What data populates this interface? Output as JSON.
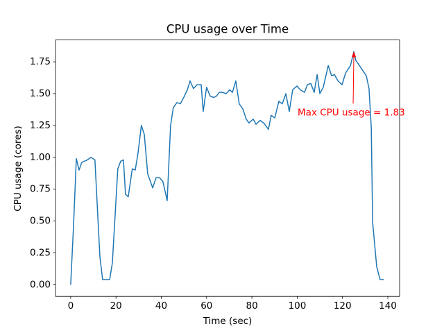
{
  "chart_data": {
    "type": "line",
    "title": "CPU usage over Time",
    "xlabel": "Time (sec)",
    "ylabel": "CPU usage (cores)",
    "x": [
      0,
      1.2,
      2.5,
      3.7,
      4.9,
      6.1,
      7.4,
      8.9,
      10.7,
      12.9,
      14.1,
      15.3,
      17.2,
      18.4,
      20.8,
      22.1,
      23.3,
      24.2,
      25.4,
      27.2,
      28.5,
      29.7,
      31.2,
      32.5,
      34.0,
      36.2,
      37.7,
      39.2,
      40.7,
      42.6,
      44.1,
      45.3,
      46.9,
      48.4,
      49.9,
      51.5,
      52.7,
      54.2,
      55.8,
      57.6,
      58.5,
      60.0,
      61.6,
      63.1,
      64.3,
      65.6,
      67.1,
      68.6,
      70.2,
      71.4,
      72.9,
      74.4,
      76.0,
      77.5,
      78.7,
      80.6,
      81.8,
      83.6,
      85.2,
      87.3,
      88.5,
      90.1,
      91.9,
      93.4,
      95.0,
      96.5,
      98.0,
      99.9,
      101.4,
      103.2,
      104.5,
      106.0,
      107.5,
      108.8,
      110.0,
      111.5,
      113.7,
      115.2,
      116.4,
      118.0,
      119.8,
      121.3,
      123.5,
      125.0,
      125.9,
      127.5,
      129.0,
      130.5,
      131.7,
      132.7,
      133.3,
      135.1,
      136.6,
      138.2
    ],
    "series": [
      {
        "name": "CPU usage",
        "color": "#1f77b4",
        "values": [
          0,
          0.44,
          0.99,
          0.9,
          0.96,
          0.97,
          0.98,
          1.0,
          0.98,
          0.22,
          0.04,
          0.04,
          0.04,
          0.17,
          0.91,
          0.97,
          0.98,
          0.71,
          0.69,
          0.91,
          0.9,
          1.03,
          1.25,
          1.18,
          0.87,
          0.76,
          0.84,
          0.84,
          0.81,
          0.66,
          1.25,
          1.39,
          1.43,
          1.42,
          1.47,
          1.53,
          1.6,
          1.54,
          1.57,
          1.57,
          1.36,
          1.55,
          1.48,
          1.47,
          1.48,
          1.51,
          1.51,
          1.5,
          1.53,
          1.51,
          1.6,
          1.42,
          1.38,
          1.3,
          1.27,
          1.3,
          1.26,
          1.29,
          1.27,
          1.22,
          1.33,
          1.31,
          1.44,
          1.42,
          1.5,
          1.36,
          1.53,
          1.56,
          1.53,
          1.51,
          1.57,
          1.58,
          1.51,
          1.65,
          1.5,
          1.55,
          1.72,
          1.64,
          1.65,
          1.6,
          1.57,
          1.66,
          1.72,
          1.83,
          1.76,
          1.72,
          1.68,
          1.64,
          1.54,
          1.23,
          0.49,
          0.14,
          0.04,
          0.04
        ]
      }
    ],
    "xlim": [
      -6.7,
      145.2
    ],
    "ylim": [
      -0.0915,
      1.9215
    ],
    "xticks": [
      0,
      20,
      40,
      60,
      80,
      100,
      120,
      140
    ],
    "yticks": [
      {
        "value": 0,
        "label": "0.00"
      },
      0.25,
      {
        "value": 0.5,
        "label": "0.50"
      },
      0.75,
      {
        "value": 1,
        "label": "1.00"
      },
      1.25,
      {
        "value": 1.5,
        "label": "1.50"
      },
      1.75
    ],
    "annotation": {
      "text": "Max CPU usage = 1.83",
      "x": 125,
      "y": 1.83,
      "color": "#ff0000"
    }
  }
}
